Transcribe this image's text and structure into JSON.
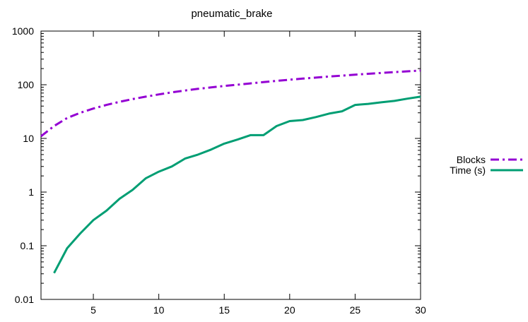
{
  "chart_data": {
    "type": "line",
    "title": "pneumatic_brake",
    "xlabel": "",
    "ylabel": "",
    "xlim": [
      1,
      30
    ],
    "ylim": [
      0.01,
      1000
    ],
    "y_scale": "log",
    "grid": false,
    "legend_position": "outside-right",
    "x_ticks": [
      5,
      10,
      15,
      20,
      25,
      30
    ],
    "y_ticks": [
      0.01,
      0.1,
      1,
      10,
      100,
      1000
    ],
    "y_tick_labels": [
      "0.01",
      "0.1",
      "1",
      "10",
      "100",
      "1000"
    ],
    "series": [
      {
        "name": "Blocks",
        "color": "#9400d3",
        "dash": "dash-dot",
        "x": [
          1,
          2,
          3,
          4,
          5,
          6,
          7,
          8,
          9,
          10,
          11,
          12,
          13,
          14,
          15,
          16,
          17,
          18,
          19,
          20,
          21,
          22,
          23,
          24,
          25,
          26,
          27,
          28,
          29,
          30
        ],
        "values": [
          11,
          17,
          24,
          30,
          36,
          42,
          48,
          54,
          60,
          66,
          72,
          78,
          84,
          89,
          95,
          100,
          106,
          112,
          118,
          124,
          130,
          136,
          142,
          148,
          154,
          160,
          166,
          172,
          178,
          184
        ]
      },
      {
        "name": "Time (s)",
        "color": "#009e73",
        "dash": "solid",
        "x": [
          2,
          3,
          4,
          5,
          6,
          7,
          8,
          9,
          10,
          11,
          12,
          13,
          14,
          15,
          16,
          17,
          18,
          19,
          20,
          21,
          22,
          23,
          24,
          25,
          26,
          27,
          28,
          29,
          30
        ],
        "values": [
          0.031,
          0.09,
          0.17,
          0.3,
          0.45,
          0.75,
          1.1,
          1.8,
          2.4,
          3.0,
          4.2,
          5.0,
          6.2,
          8.0,
          9.5,
          11.5,
          11.5,
          17,
          21,
          22,
          25,
          29,
          32,
          42,
          44,
          47,
          50,
          55,
          60
        ]
      }
    ]
  }
}
